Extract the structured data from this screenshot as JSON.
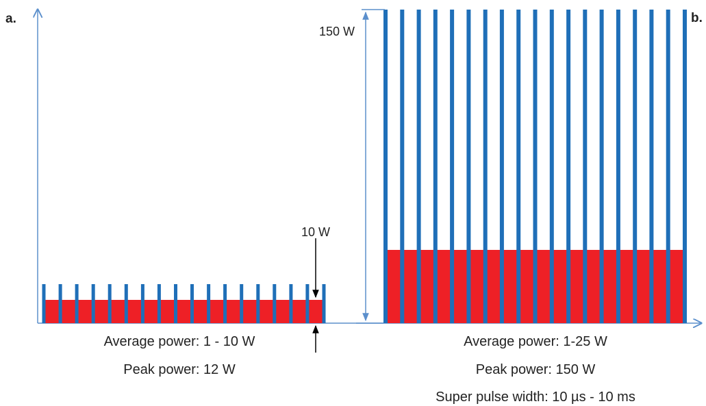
{
  "panel_a": {
    "letter": "a.",
    "level_label": "10 W",
    "captions": [
      "Average power: 1 - 10 W",
      "Peak power: 12 W"
    ],
    "pulse_count": 18
  },
  "panel_b": {
    "letter": "b.",
    "level_label": "150 W",
    "captions": [
      "Average power: 1-25 W",
      "Peak power: 150 W",
      "Super pulse width: 10 µs - 10 ms"
    ],
    "pulse_count": 19
  },
  "colors": {
    "axis": "#5b8fcc",
    "pulse": "#1f6fb8",
    "average_fill": "#ee2026",
    "annotation": "#000000"
  }
}
